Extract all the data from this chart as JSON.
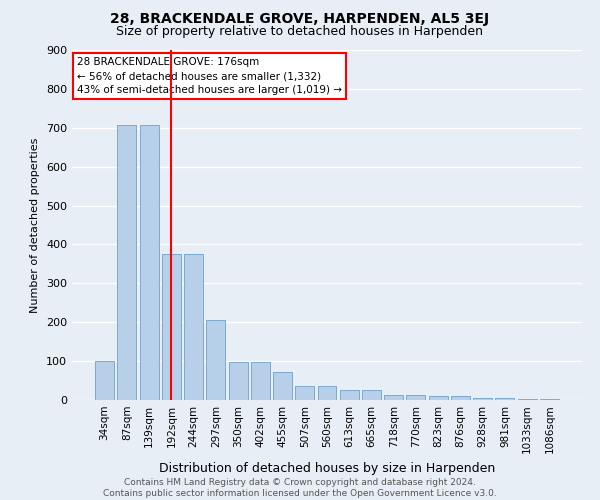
{
  "title": "28, BRACKENDALE GROVE, HARPENDEN, AL5 3EJ",
  "subtitle": "Size of property relative to detached houses in Harpenden",
  "xlabel": "Distribution of detached houses by size in Harpenden",
  "ylabel": "Number of detached properties",
  "categories": [
    "34sqm",
    "87sqm",
    "139sqm",
    "192sqm",
    "244sqm",
    "297sqm",
    "350sqm",
    "402sqm",
    "455sqm",
    "507sqm",
    "560sqm",
    "613sqm",
    "665sqm",
    "718sqm",
    "770sqm",
    "823sqm",
    "876sqm",
    "928sqm",
    "981sqm",
    "1033sqm",
    "1086sqm"
  ],
  "values": [
    100,
    707,
    707,
    375,
    375,
    207,
    97,
    97,
    73,
    35,
    35,
    25,
    25,
    12,
    12,
    10,
    10,
    5,
    5,
    3,
    3
  ],
  "bar_color": "#b8cfea",
  "bar_edge_color": "#6fa0cc",
  "vline_x_index": 3,
  "vline_color": "red",
  "annotation_text": "28 BRACKENDALE GROVE: 176sqm\n← 56% of detached houses are smaller (1,332)\n43% of semi-detached houses are larger (1,019) →",
  "annotation_box_color": "white",
  "annotation_box_edge_color": "red",
  "ylim": [
    0,
    900
  ],
  "yticks": [
    0,
    100,
    200,
    300,
    400,
    500,
    600,
    700,
    800,
    900
  ],
  "footer": "Contains HM Land Registry data © Crown copyright and database right 2024.\nContains public sector information licensed under the Open Government Licence v3.0.",
  "bg_color": "#e8eef5",
  "grid_color": "white",
  "title_fontsize": 10,
  "subtitle_fontsize": 9,
  "footer_fontsize": 6.5,
  "ylabel_fontsize": 8,
  "xlabel_fontsize": 9,
  "tick_fontsize": 7.5
}
